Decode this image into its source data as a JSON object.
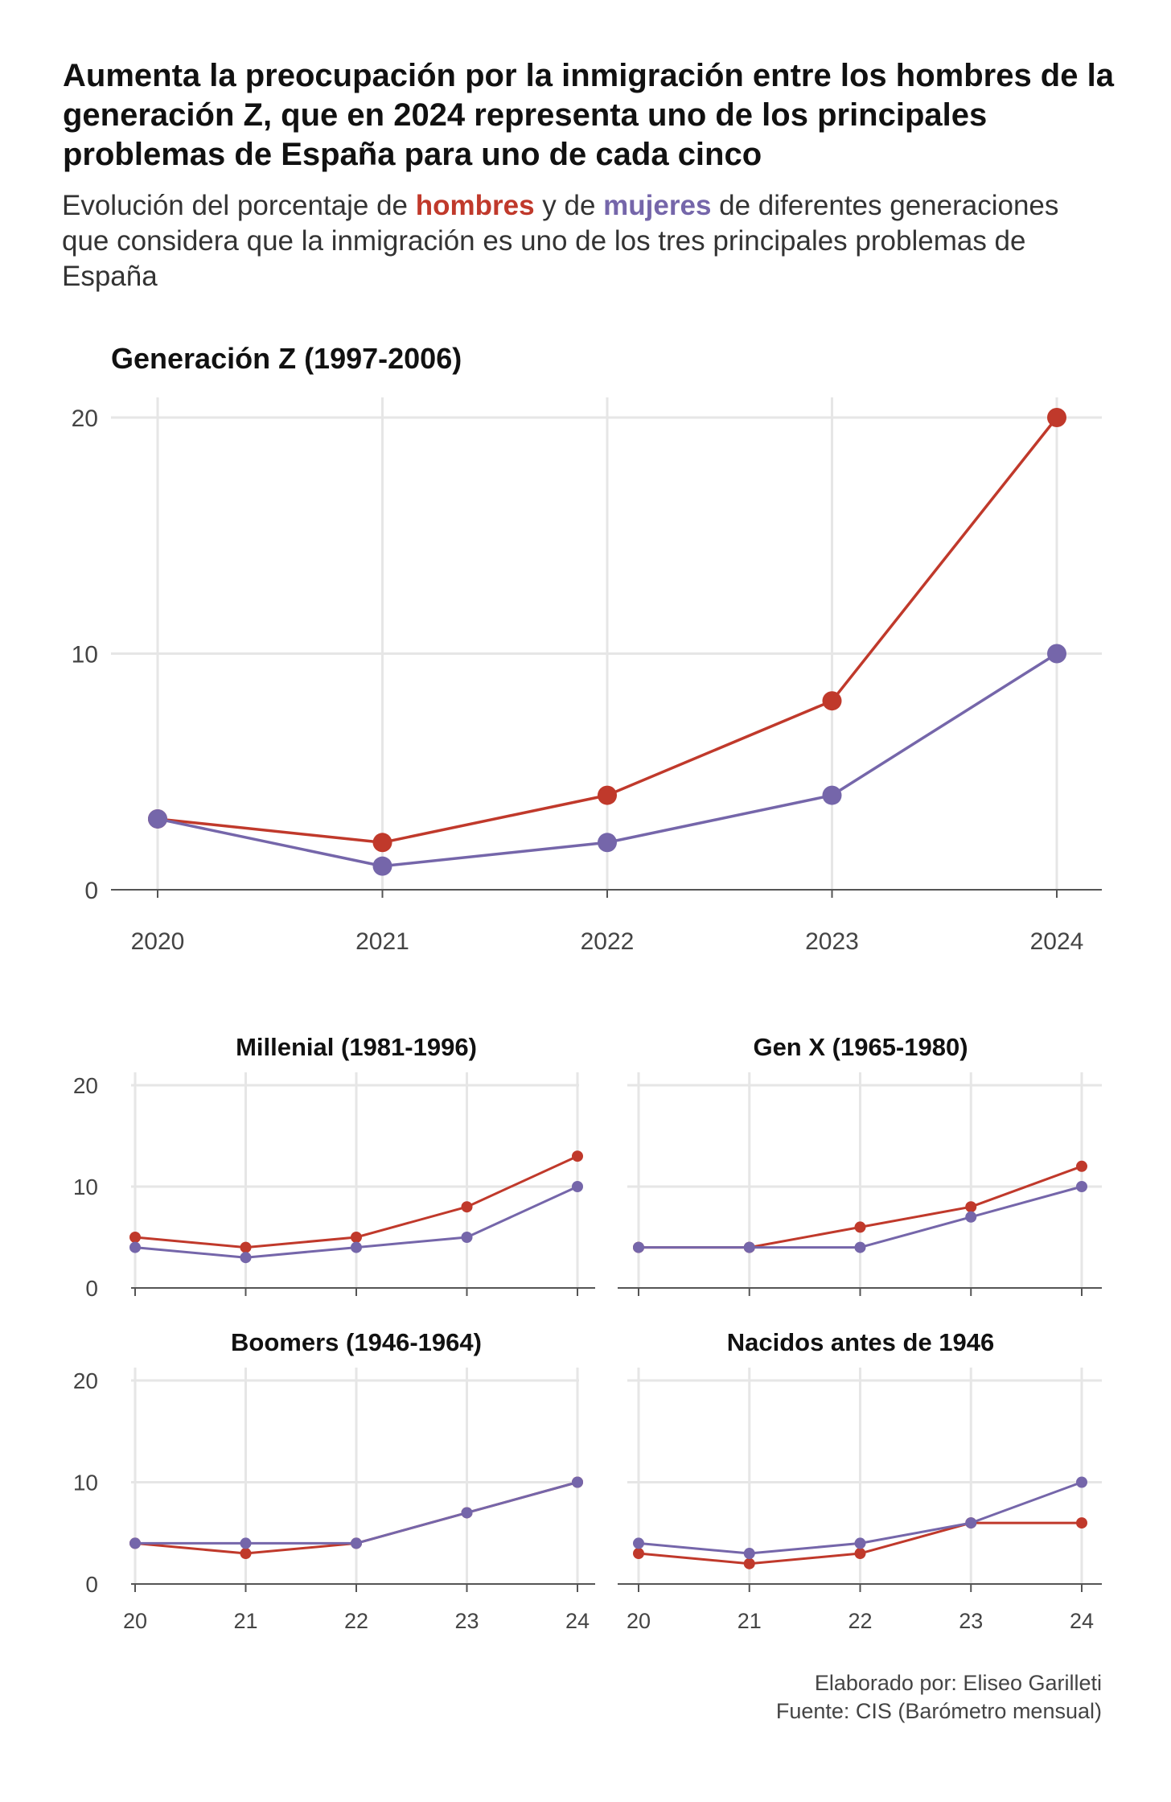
{
  "header": {
    "title": "Aumenta la preocupación por la inmigración entre los hombres de la generación Z, que en 2024 representa uno de los principales problemas de España para uno de cada cinco",
    "subtitle_part1": "Evolución del porcentaje de ",
    "subtitle_men": "hombres",
    "subtitle_part2": " y de ",
    "subtitle_women": "mujeres",
    "subtitle_part3": " de diferentes generaciones que considera que la inmigración es uno de los tres principales problemas de España"
  },
  "footer": {
    "author": "Elaborado por: Eliseo Garilleti",
    "source": "Fuente: CIS (Barómetro mensual)"
  },
  "colors": {
    "men": "#c0392b",
    "women": "#7566aa",
    "grid": "#e6e6e6",
    "axis": "#555555"
  },
  "chart_data": [
    {
      "type": "line",
      "title": "Generación Z (1997-2006)",
      "x": [
        2020,
        2021,
        2022,
        2023,
        2024
      ],
      "x_tick_labels": [
        "2020",
        "2021",
        "2022",
        "2023",
        "2024"
      ],
      "y_ticks": [
        0,
        10,
        20
      ],
      "ylim": [
        0,
        20
      ],
      "series": [
        {
          "name": "hombres",
          "color": "#c0392b",
          "values": [
            3,
            2,
            4,
            8,
            20
          ]
        },
        {
          "name": "mujeres",
          "color": "#7566aa",
          "values": [
            3,
            1,
            2,
            4,
            10
          ]
        }
      ]
    },
    {
      "type": "line",
      "title": "Millenial (1981-1996)",
      "x": [
        2020,
        2021,
        2022,
        2023,
        2024
      ],
      "y_ticks": [
        0,
        10,
        20
      ],
      "ylim": [
        0,
        20
      ],
      "series": [
        {
          "name": "hombres",
          "color": "#c0392b",
          "values": [
            5,
            4,
            5,
            8,
            13
          ]
        },
        {
          "name": "mujeres",
          "color": "#7566aa",
          "values": [
            4,
            3,
            4,
            5,
            10
          ]
        }
      ]
    },
    {
      "type": "line",
      "title": "Gen X (1965-1980)",
      "x": [
        2020,
        2021,
        2022,
        2023,
        2024
      ],
      "ylim": [
        0,
        20
      ],
      "series": [
        {
          "name": "hombres",
          "color": "#c0392b",
          "values": [
            4,
            4,
            6,
            8,
            12
          ]
        },
        {
          "name": "mujeres",
          "color": "#7566aa",
          "values": [
            4,
            4,
            4,
            7,
            10
          ]
        }
      ]
    },
    {
      "type": "line",
      "title": "Boomers (1946-1964)",
      "x": [
        2020,
        2021,
        2022,
        2023,
        2024
      ],
      "x_tick_labels": [
        "20",
        "21",
        "22",
        "23",
        "24"
      ],
      "y_ticks": [
        0,
        10,
        20
      ],
      "ylim": [
        0,
        20
      ],
      "series": [
        {
          "name": "hombres",
          "color": "#c0392b",
          "values": [
            4,
            3,
            4,
            7,
            10
          ]
        },
        {
          "name": "mujeres",
          "color": "#7566aa",
          "values": [
            4,
            4,
            4,
            7,
            10
          ]
        }
      ]
    },
    {
      "type": "line",
      "title": "Nacidos antes de 1946",
      "x": [
        2020,
        2021,
        2022,
        2023,
        2024
      ],
      "x_tick_labels": [
        "20",
        "21",
        "22",
        "23",
        "24"
      ],
      "ylim": [
        0,
        20
      ],
      "series": [
        {
          "name": "hombres",
          "color": "#c0392b",
          "values": [
            3,
            2,
            3,
            6,
            6
          ]
        },
        {
          "name": "mujeres",
          "color": "#7566aa",
          "values": [
            4,
            3,
            4,
            6,
            10
          ]
        }
      ]
    }
  ]
}
